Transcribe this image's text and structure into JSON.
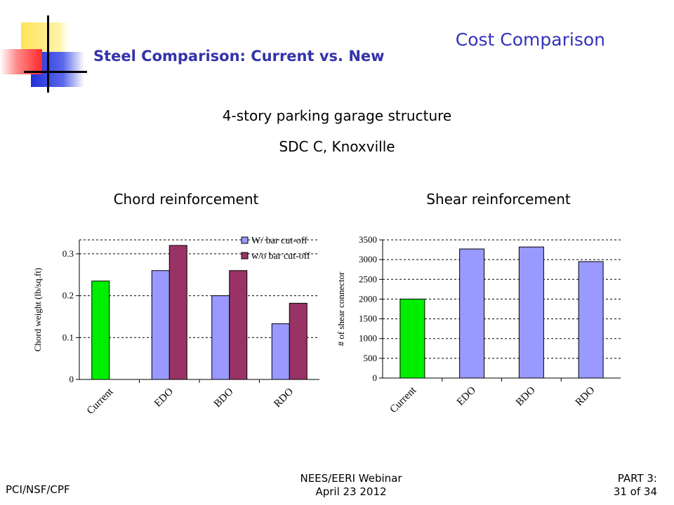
{
  "header": {
    "title": "Steel Comparison: Current vs. New",
    "section": "Cost Comparison"
  },
  "subtitle": {
    "line1": "4-story parking garage structure",
    "line2": "SDC C, Knoxville"
  },
  "colors": {
    "current": "#00ee00",
    "series1": "#9999ff",
    "series2": "#993366",
    "title": "#3333aa",
    "deco_yellow": "#ffee66",
    "deco_blue": "#2233dd",
    "deco_red": "#ff3333"
  },
  "chart_data": [
    {
      "heading": "Chord reinforcement",
      "type": "bar",
      "categories": [
        "Current",
        "EDO",
        "BDO",
        "RDO"
      ],
      "series": [
        {
          "name": "W/ bar cut-off",
          "values": [
            0.235,
            0.26,
            0.2,
            0.133
          ]
        },
        {
          "name": "w/o bar cut-off",
          "values": [
            null,
            0.32,
            0.26,
            0.182
          ]
        }
      ],
      "current_color_override": true,
      "ylabel": "Chord weight (lb/sq.ft)",
      "xlabel": "",
      "ylim": [
        0,
        0.3333
      ],
      "yticks": [
        "0",
        "0.1",
        "0.2",
        "0.3"
      ],
      "ytick_values": [
        0,
        0.1,
        0.2,
        0.3
      ],
      "grid": true,
      "legend": "top-right"
    },
    {
      "heading": "Shear reinforcement",
      "type": "bar",
      "categories": [
        "Current",
        "EDO",
        "BDO",
        "RDO"
      ],
      "series": [
        {
          "values": [
            2000,
            3270,
            3320,
            2950
          ]
        }
      ],
      "current_color_override": true,
      "ylabel": "# of shear connector",
      "xlabel": "",
      "ylim": [
        0,
        3500
      ],
      "yticks": [
        "0",
        "500",
        "1000",
        "1500",
        "2000",
        "2500",
        "3000",
        "3500"
      ],
      "ytick_values": [
        0,
        500,
        1000,
        1500,
        2000,
        2500,
        3000,
        3500
      ],
      "grid": true,
      "legend": "none"
    }
  ],
  "footer": {
    "left": "PCI/NSF/CPF",
    "center_line1": "NEES/EERI Webinar",
    "center_line2": "April 23 2012",
    "right_line1": "PART 3:",
    "right_line2": "31 of 34"
  }
}
